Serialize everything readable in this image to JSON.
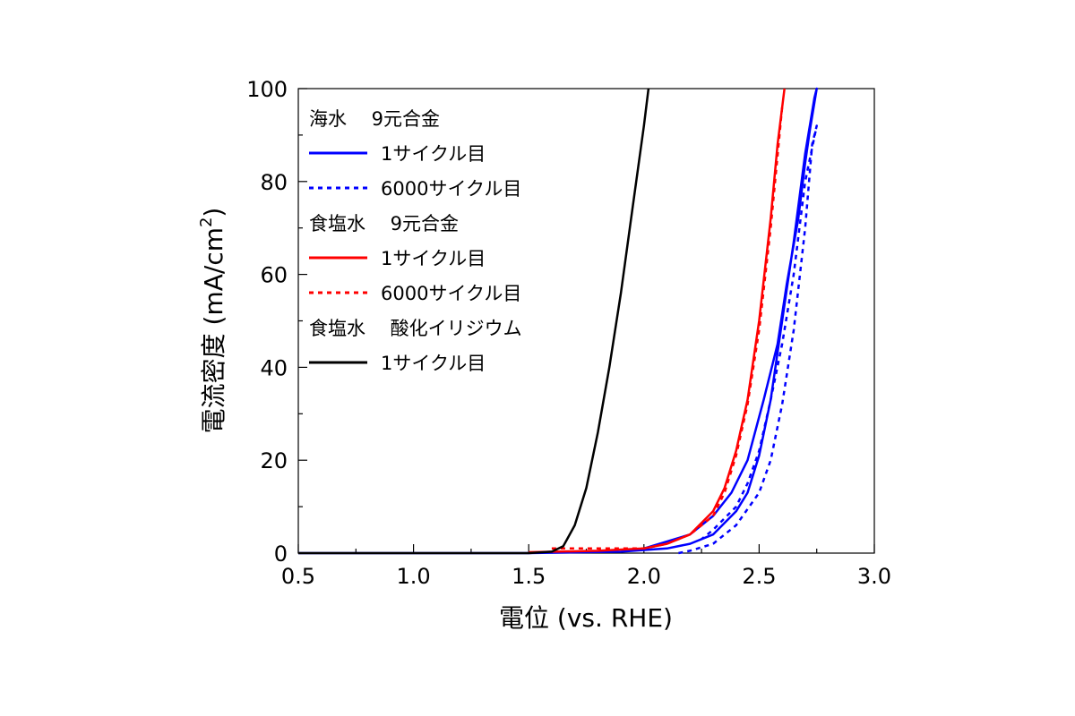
{
  "chart_data": {
    "type": "line",
    "xlabel": "電位 (vs. RHE)",
    "ylabel_main": "電流密度 (mA/cm",
    "ylabel_sup": "2",
    "ylabel_end": ")",
    "xlim": [
      0.5,
      3.0
    ],
    "ylim": [
      0,
      100
    ],
    "x_ticks": [
      "0.5",
      "1.0",
      "1.5",
      "2.0",
      "2.5",
      "3.0"
    ],
    "y_ticks": [
      "0",
      "20",
      "40",
      "60",
      "80",
      "100"
    ],
    "grid": false,
    "legend_position": "top-left",
    "legend": [
      {
        "type": "header",
        "label": "海水　 9元合金"
      },
      {
        "type": "series",
        "label": "1サイクル目",
        "color": "#0000ff",
        "dash": "solid"
      },
      {
        "type": "series",
        "label": "6000サイクル目",
        "color": "#0000ff",
        "dash": "dot"
      },
      {
        "type": "header",
        "label": "食塩水　 9元合金"
      },
      {
        "type": "series",
        "label": "1サイクル目",
        "color": "#ff0000",
        "dash": "solid"
      },
      {
        "type": "series",
        "label": "6000サイクル目",
        "color": "#ff0000",
        "dash": "dot"
      },
      {
        "type": "header",
        "label": "食塩水　 酸化イリジウム"
      },
      {
        "type": "series",
        "label": "1サイクル目",
        "color": "#000000",
        "dash": "solid"
      }
    ],
    "series": [
      {
        "color": "#0000ff",
        "dash": "solid",
        "x": [
          0.5,
          1.0,
          1.5,
          1.9,
          2.1,
          2.2,
          2.3,
          2.4,
          2.45,
          2.5,
          2.55,
          2.6,
          2.65,
          2.7,
          2.72,
          2.74,
          2.75,
          2.72,
          2.7,
          2.67,
          2.62,
          2.58,
          2.52,
          2.45,
          2.38,
          2.3,
          2.2,
          2.0
        ],
        "y": [
          0,
          0,
          0,
          0.3,
          1,
          2,
          4,
          9,
          13,
          21,
          33,
          50,
          67,
          86,
          92,
          98,
          100,
          91,
          84,
          72,
          58,
          45,
          33,
          20,
          13,
          8,
          4,
          1
        ]
      },
      {
        "color": "#0000ff",
        "dash": "dot",
        "x": [
          2.15,
          2.2,
          2.3,
          2.4,
          2.5,
          2.55,
          2.6,
          2.65,
          2.7,
          2.73,
          2.75,
          2.7,
          2.68,
          2.65,
          2.6,
          2.55,
          2.5,
          2.45,
          2.4,
          2.3,
          2.25
        ],
        "y": [
          0,
          0.5,
          2,
          6,
          13,
          20,
          32,
          48,
          70,
          88,
          92,
          80,
          72,
          60,
          45,
          33,
          22,
          15,
          10,
          5,
          3
        ]
      },
      {
        "color": "#ff0000",
        "dash": "solid",
        "x": [
          1.5,
          1.8,
          2.0,
          2.1,
          2.2,
          2.3,
          2.35,
          2.4,
          2.45,
          2.5,
          2.55,
          2.58,
          2.61
        ],
        "y": [
          0.2,
          0.5,
          1,
          2,
          4,
          9,
          14,
          22,
          33,
          50,
          72,
          88,
          100
        ]
      },
      {
        "color": "#ff0000",
        "dash": "dot",
        "x": [
          1.6,
          1.8,
          2.0,
          2.1,
          2.2,
          2.3,
          2.35,
          2.4,
          2.45,
          2.5,
          2.55,
          2.6
        ],
        "y": [
          1,
          1,
          1,
          2,
          4,
          8,
          13,
          21,
          32,
          48,
          70,
          96
        ]
      },
      {
        "color": "#000000",
        "dash": "solid",
        "x": [
          0.5,
          1.0,
          1.5,
          1.6,
          1.65,
          1.7,
          1.75,
          1.8,
          1.85,
          1.9,
          1.95,
          2.0,
          2.02
        ],
        "y": [
          0,
          0,
          0,
          0.3,
          1.5,
          6,
          14,
          26,
          40,
          56,
          74,
          92,
          100
        ]
      }
    ]
  }
}
